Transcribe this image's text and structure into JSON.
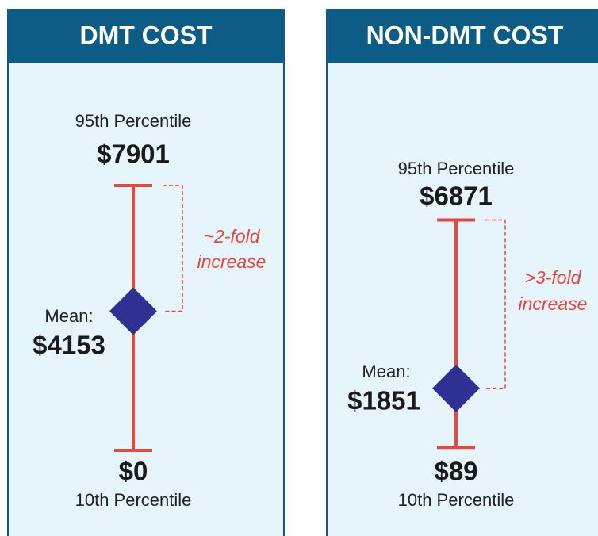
{
  "chart_data": [
    {
      "type": "range",
      "title": "DMT COST",
      "labels": [
        "95th Percentile",
        "Mean:",
        "10th Percentile"
      ],
      "values": [
        7901,
        4153,
        0
      ],
      "value_labels": [
        "$7901",
        "$4153",
        "$0"
      ],
      "annotation": [
        "~2-fold",
        "increase"
      ],
      "color": "#e8473e",
      "marker_color": "#2e3192",
      "ylim": [
        0,
        7901
      ]
    },
    {
      "type": "range",
      "title": "NON-DMT COST",
      "labels": [
        "95th Percentile",
        "Mean:",
        "10th Percentile"
      ],
      "values": [
        6871,
        1851,
        89
      ],
      "value_labels": [
        "$6871",
        "$1851",
        "$89"
      ],
      "annotation": [
        ">3-fold",
        "increase"
      ],
      "color": "#e8473e",
      "marker_color": "#2e3192",
      "ylim": [
        0,
        7901
      ]
    }
  ]
}
